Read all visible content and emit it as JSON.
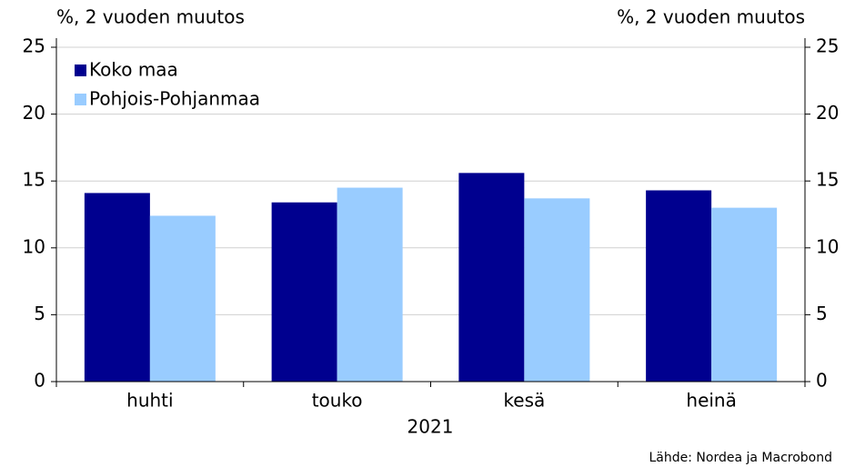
{
  "chart_data": {
    "type": "bar",
    "ylabel": "%, 2 vuoden muutos",
    "y2label": "%, 2 vuoden muutos",
    "xlabel": "2021",
    "source": "Lähde: Nordea ja Macrobond",
    "categories": [
      "huhti",
      "touko",
      "kesä",
      "heinä"
    ],
    "series": [
      {
        "name": "Koko maa",
        "color": "#00008f",
        "values": [
          14.1,
          13.4,
          15.6,
          14.3
        ]
      },
      {
        "name": "Pohjois-Pohjanmaa",
        "color": "#99ccff",
        "values": [
          12.4,
          14.5,
          13.7,
          13.0
        ]
      }
    ],
    "ylim": [
      0,
      25
    ],
    "yticks": [
      0,
      5,
      10,
      15,
      20,
      25
    ],
    "y2lim": [
      0,
      25
    ],
    "y2ticks": [
      0,
      5,
      10,
      15,
      20,
      25
    ],
    "grid": true,
    "legend": "upper left"
  }
}
